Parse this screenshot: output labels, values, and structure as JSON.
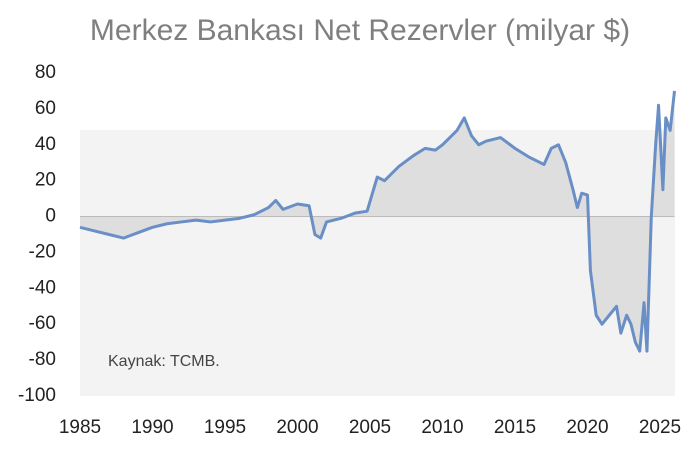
{
  "chart_data": {
    "type": "area",
    "title": "Merkez Bankası Net Rezervler (milyar $)",
    "annotation": "Kaynak: TCMB.",
    "x": [
      1985,
      1986,
      1987,
      1988,
      1989,
      1990,
      1991,
      1992,
      1993,
      1994,
      1995,
      1996,
      1997,
      1998,
      1998.5,
      1999,
      2000,
      2000.8,
      2001.2,
      2001.6,
      2002,
      2003,
      2004,
      2004.8,
      2005.5,
      2006,
      2007,
      2008,
      2008.8,
      2009.5,
      2010,
      2011,
      2011.5,
      2012,
      2012.5,
      2013,
      2014,
      2015,
      2016,
      2017,
      2017.5,
      2018,
      2018.5,
      2019,
      2019.3,
      2019.6,
      2020,
      2020.2,
      2020.6,
      2021,
      2021.5,
      2022,
      2022.3,
      2022.7,
      2023,
      2023.3,
      2023.6,
      2023.9,
      2024.1,
      2024.4,
      2024.7,
      2024.9,
      2025.2,
      2025.4,
      2025.7,
      2026
    ],
    "series": [
      {
        "name": "Net Rezervler",
        "color": "#6a8fc6",
        "values": [
          -6,
          -8,
          -10,
          -12,
          -9,
          -6,
          -4,
          -3,
          -2,
          -3,
          -2,
          -1,
          1,
          5,
          9,
          4,
          7,
          6,
          -10,
          -12,
          -3,
          -1,
          2,
          3,
          22,
          20,
          28,
          34,
          38,
          37,
          40,
          48,
          55,
          45,
          40,
          42,
          44,
          38,
          33,
          29,
          38,
          40,
          30,
          15,
          5,
          13,
          12,
          -30,
          -55,
          -60,
          -55,
          -50,
          -65,
          -55,
          -60,
          -70,
          -75,
          -48,
          -75,
          0,
          40,
          62,
          15,
          55,
          48,
          70
        ]
      }
    ],
    "xlim": [
      1985,
      2026
    ],
    "xticks": [
      1985,
      1990,
      1995,
      2000,
      2005,
      2010,
      2015,
      2020,
      2025
    ],
    "ylim": [
      -100,
      80
    ],
    "yticks": [
      -100,
      -80,
      -60,
      -40,
      -20,
      0,
      20,
      40,
      60,
      80
    ],
    "fill_color": "#dedede"
  }
}
